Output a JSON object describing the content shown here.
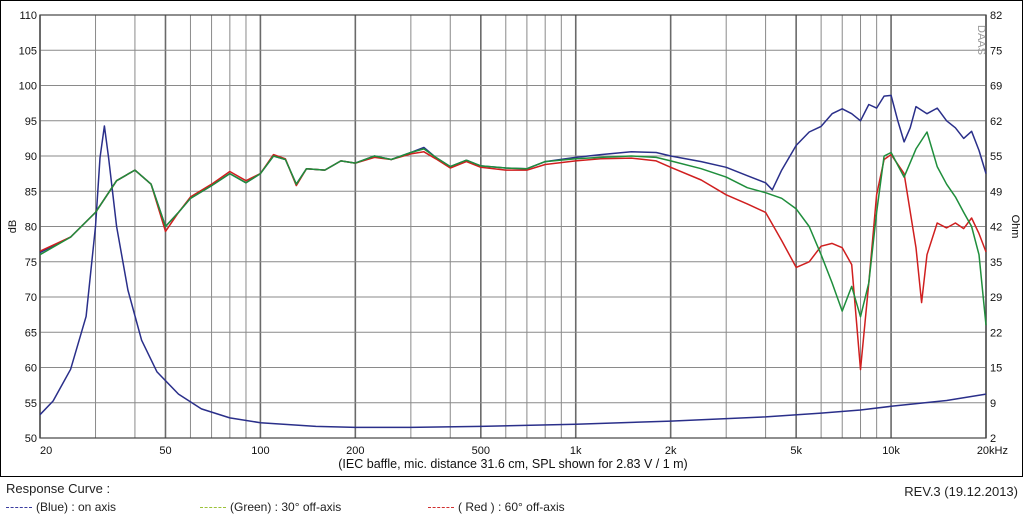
{
  "chart_data": {
    "type": "line",
    "ylabel": "dB",
    "y2label": "Ohm",
    "xlabel": "(IEC baffle, mic. distance 31.6 cm, SPL shown for 2.83 V / 1 m)",
    "x_scale": "log",
    "xlim": [
      20,
      20000
    ],
    "ylim": [
      50,
      110
    ],
    "y2lim": [
      2,
      82
    ],
    "x_ticks": [
      {
        "value": 20,
        "label": "20"
      },
      {
        "value": 50,
        "label": "50"
      },
      {
        "value": 100,
        "label": "100"
      },
      {
        "value": 200,
        "label": "200"
      },
      {
        "value": 500,
        "label": "500"
      },
      {
        "value": 1000,
        "label": "1k"
      },
      {
        "value": 2000,
        "label": "2k"
      },
      {
        "value": 5000,
        "label": "5k"
      },
      {
        "value": 10000,
        "label": "10k"
      },
      {
        "value": 20000,
        "label": "20kHz"
      }
    ],
    "y_ticks": [
      "50",
      "55",
      "60",
      "65",
      "70",
      "75",
      "80",
      "85",
      "90",
      "95",
      "100",
      "105",
      "110"
    ],
    "y2_ticks": [
      "2",
      "9",
      "15",
      "22",
      "29",
      "35",
      "42",
      "49",
      "55",
      "62",
      "69",
      "75",
      "82"
    ],
    "grid": true,
    "series": [
      {
        "name": "(Blue) : on axis",
        "color": "#2a2f8a",
        "points": [
          [
            20,
            76.3
          ],
          [
            25,
            78.5
          ],
          [
            30,
            82
          ],
          [
            35,
            86.5
          ],
          [
            40,
            88
          ],
          [
            45,
            86
          ],
          [
            50,
            80
          ],
          [
            55,
            82
          ],
          [
            60,
            84
          ],
          [
            70,
            85.8
          ],
          [
            80,
            87.5
          ],
          [
            90,
            86.2
          ],
          [
            100,
            87.5
          ],
          [
            110,
            90
          ],
          [
            120,
            89.5
          ],
          [
            130,
            86
          ],
          [
            140,
            88.2
          ],
          [
            160,
            88
          ],
          [
            180,
            89.3
          ],
          [
            200,
            89
          ],
          [
            230,
            90
          ],
          [
            260,
            89.5
          ],
          [
            300,
            90.5
          ],
          [
            330,
            91.2
          ],
          [
            360,
            89.8
          ],
          [
            400,
            88.5
          ],
          [
            450,
            89.4
          ],
          [
            500,
            88.6
          ],
          [
            600,
            88.3
          ],
          [
            700,
            88.2
          ],
          [
            800,
            89.2
          ],
          [
            1000,
            89.8
          ],
          [
            1200,
            90.2
          ],
          [
            1500,
            90.6
          ],
          [
            1800,
            90.5
          ],
          [
            2000,
            90
          ],
          [
            2500,
            89.2
          ],
          [
            3000,
            88.4
          ],
          [
            3500,
            87.2
          ],
          [
            4000,
            86.2
          ],
          [
            4200,
            85.2
          ],
          [
            4500,
            88
          ],
          [
            5000,
            91.5
          ],
          [
            5500,
            93.4
          ],
          [
            6000,
            94.2
          ],
          [
            6500,
            96
          ],
          [
            7000,
            96.7
          ],
          [
            7500,
            96
          ],
          [
            8000,
            95
          ],
          [
            8500,
            97.3
          ],
          [
            9000,
            96.8
          ],
          [
            9500,
            98.5
          ],
          [
            10000,
            98.6
          ],
          [
            10500,
            95
          ],
          [
            11000,
            92
          ],
          [
            11500,
            94
          ],
          [
            12000,
            97
          ],
          [
            13000,
            96
          ],
          [
            14000,
            96.8
          ],
          [
            15000,
            95
          ],
          [
            16000,
            94
          ],
          [
            17000,
            92.5
          ],
          [
            18000,
            93.5
          ],
          [
            19000,
            90.8
          ],
          [
            20000,
            87.5
          ]
        ]
      },
      {
        "name": "(Green) : 30° off-axis",
        "color": "#1f8e3c",
        "points": [
          [
            20,
            76
          ],
          [
            25,
            78.5
          ],
          [
            30,
            82
          ],
          [
            35,
            86.5
          ],
          [
            40,
            88
          ],
          [
            45,
            86
          ],
          [
            50,
            80
          ],
          [
            55,
            82
          ],
          [
            60,
            84
          ],
          [
            70,
            85.8
          ],
          [
            80,
            87.5
          ],
          [
            90,
            86.2
          ],
          [
            100,
            87.5
          ],
          [
            110,
            90
          ],
          [
            120,
            89.5
          ],
          [
            130,
            86
          ],
          [
            140,
            88.2
          ],
          [
            160,
            88
          ],
          [
            180,
            89.3
          ],
          [
            200,
            89
          ],
          [
            230,
            90
          ],
          [
            260,
            89.5
          ],
          [
            300,
            90.5
          ],
          [
            330,
            91
          ],
          [
            360,
            89.8
          ],
          [
            400,
            88.5
          ],
          [
            450,
            89.4
          ],
          [
            500,
            88.6
          ],
          [
            600,
            88.3
          ],
          [
            700,
            88.2
          ],
          [
            800,
            89.2
          ],
          [
            1000,
            89.6
          ],
          [
            1200,
            89.8
          ],
          [
            1500,
            90
          ],
          [
            1800,
            89.8
          ],
          [
            2000,
            89.3
          ],
          [
            2500,
            88.2
          ],
          [
            3000,
            87
          ],
          [
            3500,
            85.5
          ],
          [
            4000,
            84.8
          ],
          [
            4500,
            84
          ],
          [
            5000,
            82.5
          ],
          [
            5500,
            80
          ],
          [
            6000,
            76
          ],
          [
            6500,
            72
          ],
          [
            7000,
            68
          ],
          [
            7500,
            71.5
          ],
          [
            8000,
            67.2
          ],
          [
            8500,
            72
          ],
          [
            9000,
            82
          ],
          [
            9500,
            90
          ],
          [
            10000,
            90.5
          ],
          [
            11000,
            87
          ],
          [
            12000,
            91
          ],
          [
            13000,
            93.4
          ],
          [
            14000,
            88.5
          ],
          [
            15000,
            86
          ],
          [
            16000,
            84.2
          ],
          [
            17000,
            82
          ],
          [
            18000,
            80
          ],
          [
            19000,
            76
          ],
          [
            20000,
            66
          ]
        ]
      },
      {
        "name": "( Red ) : 60° off-axis",
        "color": "#d01f1f",
        "points": [
          [
            20,
            76.5
          ],
          [
            25,
            78.5
          ],
          [
            30,
            82
          ],
          [
            35,
            86.5
          ],
          [
            40,
            88
          ],
          [
            45,
            86
          ],
          [
            50,
            79.3
          ],
          [
            55,
            82
          ],
          [
            60,
            84.2
          ],
          [
            70,
            86
          ],
          [
            80,
            87.8
          ],
          [
            90,
            86.5
          ],
          [
            100,
            87.5
          ],
          [
            110,
            90.2
          ],
          [
            120,
            89.6
          ],
          [
            130,
            85.8
          ],
          [
            140,
            88.2
          ],
          [
            160,
            88
          ],
          [
            180,
            89.3
          ],
          [
            200,
            89
          ],
          [
            230,
            89.8
          ],
          [
            260,
            89.5
          ],
          [
            300,
            90.3
          ],
          [
            330,
            90.6
          ],
          [
            360,
            89.6
          ],
          [
            400,
            88.3
          ],
          [
            450,
            89.2
          ],
          [
            500,
            88.4
          ],
          [
            600,
            88
          ],
          [
            700,
            88
          ],
          [
            800,
            88.8
          ],
          [
            1000,
            89.3
          ],
          [
            1200,
            89.6
          ],
          [
            1500,
            89.7
          ],
          [
            1800,
            89.3
          ],
          [
            2000,
            88.4
          ],
          [
            2500,
            86.6
          ],
          [
            3000,
            84.5
          ],
          [
            3500,
            83.2
          ],
          [
            4000,
            82
          ],
          [
            4500,
            78
          ],
          [
            5000,
            74.2
          ],
          [
            5500,
            75
          ],
          [
            6000,
            77.2
          ],
          [
            6500,
            77.6
          ],
          [
            7000,
            77
          ],
          [
            7500,
            74.6
          ],
          [
            8000,
            59.7
          ],
          [
            8500,
            72
          ],
          [
            9000,
            84.5
          ],
          [
            9500,
            89.5
          ],
          [
            10000,
            90.2
          ],
          [
            11000,
            87.5
          ],
          [
            12000,
            77
          ],
          [
            12500,
            69.2
          ],
          [
            13000,
            76
          ],
          [
            14000,
            80.5
          ],
          [
            15000,
            79.8
          ],
          [
            16000,
            80.5
          ],
          [
            17000,
            79.7
          ],
          [
            18000,
            81.2
          ],
          [
            19000,
            79
          ],
          [
            20000,
            76.4
          ]
        ]
      },
      {
        "name": "(Blue) : on axis impedance",
        "axis": "y2",
        "color": "#2a2f8a",
        "points": [
          [
            20,
            6.4
          ],
          [
            22,
            9
          ],
          [
            25,
            15
          ],
          [
            28,
            25
          ],
          [
            30,
            42
          ],
          [
            31,
            55
          ],
          [
            32,
            61
          ],
          [
            33,
            55
          ],
          [
            35,
            42
          ],
          [
            38,
            30
          ],
          [
            42,
            20.5
          ],
          [
            47,
            14.5
          ],
          [
            55,
            10.3
          ],
          [
            65,
            7.5
          ],
          [
            80,
            5.8
          ],
          [
            100,
            4.9
          ],
          [
            150,
            4.2
          ],
          [
            200,
            4
          ],
          [
            300,
            4
          ],
          [
            500,
            4.2
          ],
          [
            1000,
            4.6
          ],
          [
            2000,
            5.2
          ],
          [
            4000,
            6
          ],
          [
            6000,
            6.7
          ],
          [
            8000,
            7.3
          ],
          [
            10000,
            8
          ],
          [
            15000,
            9.1
          ],
          [
            20000,
            10.3
          ]
        ]
      }
    ]
  },
  "footer": {
    "heading": "Response Curve :",
    "legend": [
      {
        "label": "(Blue) : on axis",
        "color": "#3a3ca0"
      },
      {
        "label": "(Green) : 30° off-axis",
        "color": "#9cc23a"
      },
      {
        "label": "( Red ) : 60° off-axis",
        "color": "#d03030"
      }
    ],
    "revision": "REV.3 (19.12.2013)",
    "watermark": "DAAS"
  }
}
